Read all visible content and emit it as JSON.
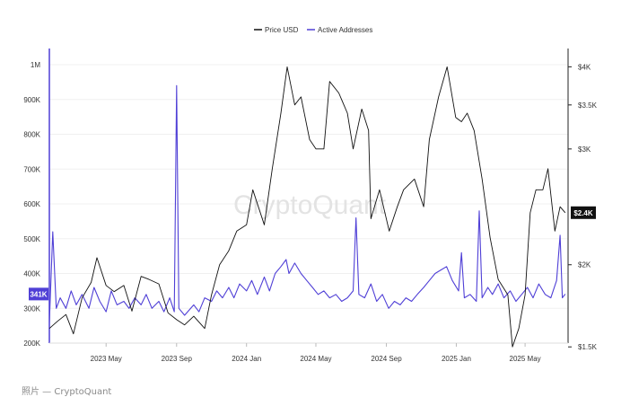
{
  "chart_data": {
    "type": "line",
    "title": "",
    "legend_position": "top-center",
    "watermark": "CryptoQuant",
    "x_ticks": [
      "2023 May",
      "2023 Sep",
      "2024 Jan",
      "2024 May",
      "2024 Sep",
      "2025 Jan",
      "2025 May"
    ],
    "xlim": [
      "2023-01-22",
      "2025-07-15"
    ],
    "y_left": {
      "label": "",
      "ticks": [
        "200K",
        "300K",
        "400K",
        "500K",
        "600K",
        "700K",
        "800K",
        "900K",
        "1M"
      ],
      "ylim": [
        200000,
        1000000
      ]
    },
    "y_right": {
      "label": "",
      "scale": "log",
      "ticks": [
        "$1.5K",
        "$2K",
        "$3K",
        "$3.5K",
        "$4K"
      ],
      "ylim": [
        1100,
        4200
      ]
    },
    "current_values": {
      "price": "$2.4K",
      "active_addresses": "341K"
    },
    "series": [
      {
        "name": "Price USD",
        "axis": "right",
        "color": "#111111",
        "points": [
          [
            "2023-01-22",
            1600
          ],
          [
            "2023-02-05",
            1640
          ],
          [
            "2023-02-20",
            1680
          ],
          [
            "2023-03-05",
            1570
          ],
          [
            "2023-03-20",
            1780
          ],
          [
            "2023-04-05",
            1880
          ],
          [
            "2023-04-15",
            2050
          ],
          [
            "2023-05-01",
            1860
          ],
          [
            "2023-05-15",
            1820
          ],
          [
            "2023-06-01",
            1860
          ],
          [
            "2023-06-15",
            1700
          ],
          [
            "2023-07-01",
            1920
          ],
          [
            "2023-07-15",
            1900
          ],
          [
            "2023-08-01",
            1870
          ],
          [
            "2023-08-17",
            1690
          ],
          [
            "2023-09-01",
            1650
          ],
          [
            "2023-09-15",
            1620
          ],
          [
            "2023-10-01",
            1670
          ],
          [
            "2023-10-20",
            1600
          ],
          [
            "2023-11-01",
            1800
          ],
          [
            "2023-11-15",
            2000
          ],
          [
            "2023-12-01",
            2100
          ],
          [
            "2023-12-15",
            2250
          ],
          [
            "2024-01-01",
            2300
          ],
          [
            "2024-01-12",
            2600
          ],
          [
            "2024-02-01",
            2300
          ],
          [
            "2024-02-15",
            2800
          ],
          [
            "2024-03-01",
            3400
          ],
          [
            "2024-03-12",
            4000
          ],
          [
            "2024-03-25",
            3500
          ],
          [
            "2024-04-05",
            3600
          ],
          [
            "2024-04-20",
            3100
          ],
          [
            "2024-05-01",
            3000
          ],
          [
            "2024-05-15",
            3000
          ],
          [
            "2024-05-25",
            3800
          ],
          [
            "2024-06-10",
            3650
          ],
          [
            "2024-06-25",
            3400
          ],
          [
            "2024-07-05",
            3000
          ],
          [
            "2024-07-20",
            3450
          ],
          [
            "2024-08-01",
            3200
          ],
          [
            "2024-08-05",
            2350
          ],
          [
            "2024-08-20",
            2600
          ],
          [
            "2024-09-06",
            2250
          ],
          [
            "2024-09-20",
            2450
          ],
          [
            "2024-10-01",
            2600
          ],
          [
            "2024-10-20",
            2700
          ],
          [
            "2024-11-05",
            2450
          ],
          [
            "2024-11-15",
            3100
          ],
          [
            "2024-12-01",
            3600
          ],
          [
            "2024-12-16",
            4000
          ],
          [
            "2024-12-31",
            3350
          ],
          [
            "2025-01-10",
            3300
          ],
          [
            "2025-01-20",
            3400
          ],
          [
            "2025-02-01",
            3200
          ],
          [
            "2025-02-15",
            2700
          ],
          [
            "2025-03-01",
            2200
          ],
          [
            "2025-03-15",
            1900
          ],
          [
            "2025-04-01",
            1800
          ],
          [
            "2025-04-09",
            1500
          ],
          [
            "2025-04-20",
            1600
          ],
          [
            "2025-05-01",
            1800
          ],
          [
            "2025-05-10",
            2400
          ],
          [
            "2025-05-20",
            2600
          ],
          [
            "2025-06-01",
            2600
          ],
          [
            "2025-06-10",
            2800
          ],
          [
            "2025-06-22",
            2250
          ],
          [
            "2025-07-01",
            2450
          ],
          [
            "2025-07-10",
            2400
          ]
        ]
      },
      {
        "name": "Active Addresses",
        "axis": "left",
        "color": "#4f3fd6",
        "points": [
          [
            "2023-01-22",
            260000
          ],
          [
            "2023-01-28",
            520000
          ],
          [
            "2023-02-03",
            300000
          ],
          [
            "2023-02-10",
            330000
          ],
          [
            "2023-02-20",
            300000
          ],
          [
            "2023-03-01",
            350000
          ],
          [
            "2023-03-10",
            310000
          ],
          [
            "2023-03-20",
            340000
          ],
          [
            "2023-04-01",
            300000
          ],
          [
            "2023-04-10",
            360000
          ],
          [
            "2023-04-20",
            320000
          ],
          [
            "2023-05-01",
            290000
          ],
          [
            "2023-05-10",
            350000
          ],
          [
            "2023-05-20",
            310000
          ],
          [
            "2023-06-01",
            320000
          ],
          [
            "2023-06-10",
            300000
          ],
          [
            "2023-06-20",
            330000
          ],
          [
            "2023-07-01",
            310000
          ],
          [
            "2023-07-10",
            340000
          ],
          [
            "2023-07-20",
            300000
          ],
          [
            "2023-08-01",
            320000
          ],
          [
            "2023-08-10",
            290000
          ],
          [
            "2023-08-20",
            330000
          ],
          [
            "2023-08-28",
            290000
          ],
          [
            "2023-09-01",
            940000
          ],
          [
            "2023-09-05",
            300000
          ],
          [
            "2023-09-15",
            280000
          ],
          [
            "2023-10-01",
            310000
          ],
          [
            "2023-10-10",
            290000
          ],
          [
            "2023-10-20",
            330000
          ],
          [
            "2023-11-01",
            320000
          ],
          [
            "2023-11-10",
            350000
          ],
          [
            "2023-11-20",
            330000
          ],
          [
            "2023-12-01",
            360000
          ],
          [
            "2023-12-10",
            330000
          ],
          [
            "2023-12-20",
            370000
          ],
          [
            "2024-01-01",
            350000
          ],
          [
            "2024-01-10",
            380000
          ],
          [
            "2024-01-20",
            340000
          ],
          [
            "2024-02-01",
            390000
          ],
          [
            "2024-02-10",
            350000
          ],
          [
            "2024-02-20",
            400000
          ],
          [
            "2024-03-01",
            420000
          ],
          [
            "2024-03-10",
            440000
          ],
          [
            "2024-03-15",
            400000
          ],
          [
            "2024-03-25",
            430000
          ],
          [
            "2024-04-05",
            400000
          ],
          [
            "2024-04-15",
            380000
          ],
          [
            "2024-04-25",
            360000
          ],
          [
            "2024-05-05",
            340000
          ],
          [
            "2024-05-15",
            350000
          ],
          [
            "2024-05-25",
            330000
          ],
          [
            "2024-06-05",
            340000
          ],
          [
            "2024-06-15",
            320000
          ],
          [
            "2024-06-25",
            330000
          ],
          [
            "2024-07-05",
            350000
          ],
          [
            "2024-07-10",
            560000
          ],
          [
            "2024-07-15",
            340000
          ],
          [
            "2024-07-25",
            330000
          ],
          [
            "2024-08-05",
            370000
          ],
          [
            "2024-08-15",
            320000
          ],
          [
            "2024-08-25",
            340000
          ],
          [
            "2024-09-05",
            300000
          ],
          [
            "2024-09-15",
            320000
          ],
          [
            "2024-09-25",
            310000
          ],
          [
            "2024-10-05",
            330000
          ],
          [
            "2024-10-15",
            320000
          ],
          [
            "2024-10-25",
            340000
          ],
          [
            "2024-11-05",
            360000
          ],
          [
            "2024-11-15",
            380000
          ],
          [
            "2024-11-25",
            400000
          ],
          [
            "2024-12-05",
            410000
          ],
          [
            "2024-12-15",
            420000
          ],
          [
            "2024-12-25",
            380000
          ],
          [
            "2025-01-05",
            350000
          ],
          [
            "2025-01-10",
            460000
          ],
          [
            "2025-01-15",
            330000
          ],
          [
            "2025-01-25",
            340000
          ],
          [
            "2025-02-05",
            320000
          ],
          [
            "2025-02-10",
            580000
          ],
          [
            "2025-02-15",
            330000
          ],
          [
            "2025-02-25",
            360000
          ],
          [
            "2025-03-05",
            340000
          ],
          [
            "2025-03-15",
            370000
          ],
          [
            "2025-03-25",
            330000
          ],
          [
            "2025-04-05",
            350000
          ],
          [
            "2025-04-15",
            320000
          ],
          [
            "2025-04-25",
            340000
          ],
          [
            "2025-05-05",
            360000
          ],
          [
            "2025-05-15",
            330000
          ],
          [
            "2025-05-25",
            370000
          ],
          [
            "2025-06-05",
            340000
          ],
          [
            "2025-06-15",
            330000
          ],
          [
            "2025-06-25",
            380000
          ],
          [
            "2025-07-01",
            510000
          ],
          [
            "2025-07-05",
            330000
          ],
          [
            "2025-07-10",
            341000
          ]
        ]
      }
    ]
  },
  "caption": "照片 — CryptoQuant"
}
